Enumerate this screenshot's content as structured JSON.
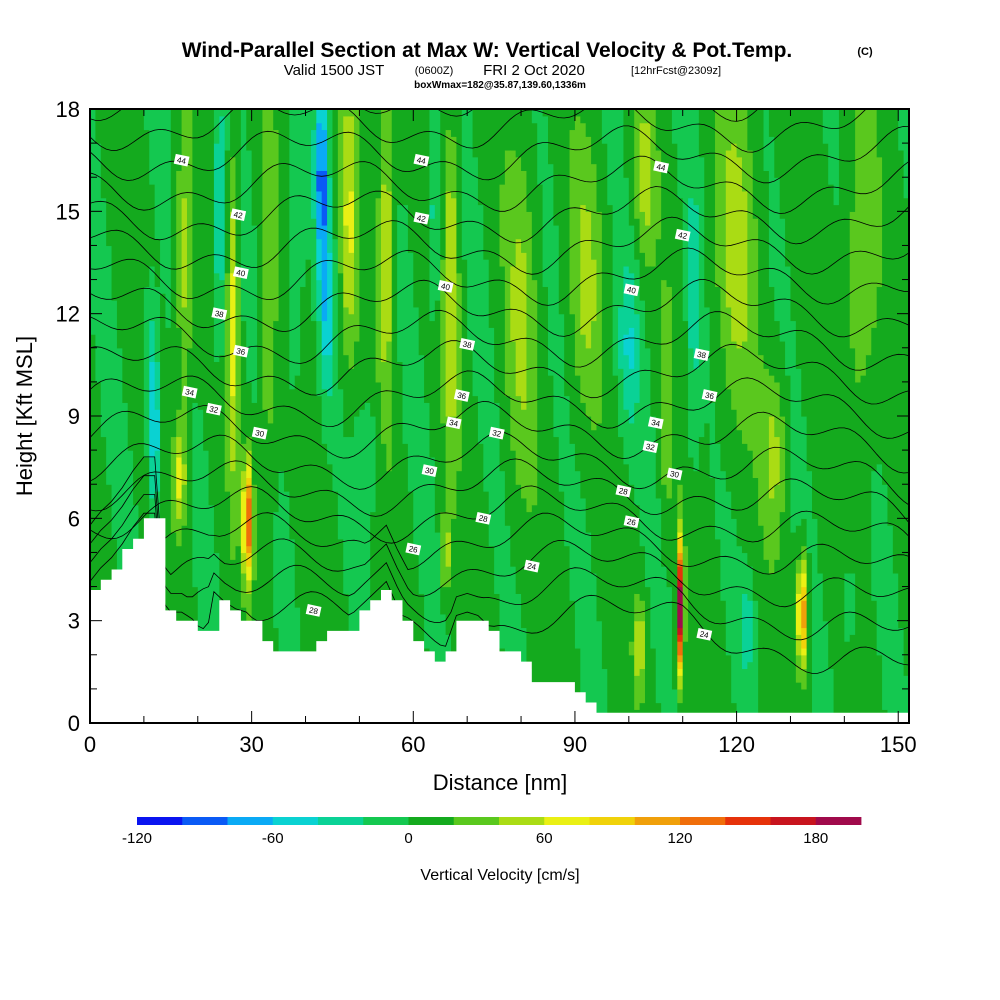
{
  "chart_data": {
    "type": "heatmap",
    "title": "Wind-Parallel Section at Max W: Vertical Velocity & Pot.Temp.",
    "title_mark": "(C)",
    "subtitle_pre": "Valid 1500 JST",
    "subtitle_z": "(0600Z)",
    "subtitle_mid": "FRI 2 Oct 2020",
    "subtitle_fcst": "[12hrFcst@2309z]",
    "info_line": "boxWmax=182@35.87,139.60,1336m",
    "xlabel": "Distance [nm]",
    "ylabel": "Height [Kft MSL]",
    "xlim": [
      0,
      152
    ],
    "ylim": [
      0,
      18
    ],
    "x_ticks": [
      0,
      30,
      60,
      90,
      120,
      150
    ],
    "y_ticks": [
      0,
      3,
      6,
      9,
      12,
      15,
      18
    ],
    "colorbar": {
      "label": "Vertical Velocity [cm/s]",
      "ticks": [
        -120,
        -60,
        0,
        60,
        120,
        180
      ],
      "bins": [
        -120,
        -100,
        -80,
        -60,
        -40,
        -20,
        0,
        20,
        40,
        60,
        80,
        100,
        120,
        140,
        160,
        180,
        200
      ],
      "colors": [
        "#0a14f0",
        "#0a5af5",
        "#0aaaf5",
        "#0ad2d2",
        "#0ad296",
        "#14c850",
        "#14aa1e",
        "#5ac81e",
        "#aadc14",
        "#eaf014",
        "#f0d20a",
        "#f0a00a",
        "#f06e0a",
        "#e6320a",
        "#c8141e",
        "#a00a4b",
        "#5a0a96"
      ]
    },
    "background_w": 5,
    "w_features": [
      {
        "x": 12,
        "y": 8.5,
        "sx": 1.1,
        "sy": 2.5,
        "w": -70
      },
      {
        "x": 11,
        "y": 11,
        "sx": 1,
        "sy": 2,
        "w": -35
      },
      {
        "x": 16.5,
        "y": 7.2,
        "sx": 1.2,
        "sy": 1.4,
        "w": 60
      },
      {
        "x": 17.5,
        "y": 13,
        "sx": 1.4,
        "sy": 5,
        "w": 45
      },
      {
        "x": 24,
        "y": 14.5,
        "sx": 1.2,
        "sy": 4,
        "w": -45
      },
      {
        "x": 26.5,
        "y": 12,
        "sx": 1.0,
        "sy": 5,
        "w": 60
      },
      {
        "x": 29.3,
        "y": 6.0,
        "sx": 0.9,
        "sy": 1.7,
        "w": 135
      },
      {
        "x": 33,
        "y": 12,
        "sx": 1.5,
        "sy": 6,
        "w": 35
      },
      {
        "x": 38,
        "y": 14,
        "sx": 1.4,
        "sy": 5,
        "w": -30
      },
      {
        "x": 43,
        "y": 16,
        "sx": 1.2,
        "sy": 3,
        "w": -90
      },
      {
        "x": 44,
        "y": 12,
        "sx": 1.1,
        "sy": 2.5,
        "w": -55
      },
      {
        "x": 48,
        "y": 14.5,
        "sx": 1.5,
        "sy": 4,
        "w": 55
      },
      {
        "x": 55,
        "y": 14,
        "sx": 1.5,
        "sy": 5,
        "w": 55
      },
      {
        "x": 52,
        "y": 8,
        "sx": 2.5,
        "sy": 2,
        "w": -20
      },
      {
        "x": 64,
        "y": 15,
        "sx": 1.4,
        "sy": 3,
        "w": -40
      },
      {
        "x": 67,
        "y": 13,
        "sx": 1.4,
        "sy": 5,
        "w": 55
      },
      {
        "x": 66,
        "y": 5,
        "sx": 0.8,
        "sy": 1.2,
        "w": 55
      },
      {
        "x": 80,
        "y": 12,
        "sx": 3,
        "sy": 5,
        "w": 35
      },
      {
        "x": 92,
        "y": 13,
        "sx": 3,
        "sy": 4,
        "w": 35
      },
      {
        "x": 100,
        "y": 11,
        "sx": 2,
        "sy": 2.5,
        "w": -40
      },
      {
        "x": 103,
        "y": 16,
        "sx": 2,
        "sy": 2.5,
        "w": 40
      },
      {
        "x": 102,
        "y": 2.3,
        "sx": 1.0,
        "sy": 1.3,
        "w": 55
      },
      {
        "x": 109.5,
        "y": 3.4,
        "sx": 0.65,
        "sy": 1.9,
        "w": 190
      },
      {
        "x": 107,
        "y": 9,
        "sx": 1.0,
        "sy": 3,
        "w": 35
      },
      {
        "x": 112,
        "y": 12,
        "sx": 1.2,
        "sy": 5,
        "w": -30
      },
      {
        "x": 120,
        "y": 14,
        "sx": 4,
        "sy": 5,
        "w": 40
      },
      {
        "x": 122,
        "y": 2.8,
        "sx": 1.2,
        "sy": 1.3,
        "w": -40
      },
      {
        "x": 127,
        "y": 8,
        "sx": 2.2,
        "sy": 2.5,
        "w": 40
      },
      {
        "x": 132.2,
        "y": 3.2,
        "sx": 0.9,
        "sy": 1.6,
        "w": 125
      },
      {
        "x": 143,
        "y": 13,
        "sx": 3,
        "sy": 5,
        "w": 35
      },
      {
        "x": 141,
        "y": 3.5,
        "sx": 2,
        "sy": 2,
        "w": -20
      }
    ],
    "terrain_kft": [
      [
        0,
        3.9
      ],
      [
        2,
        4.3
      ],
      [
        4,
        4.6
      ],
      [
        6,
        5.0
      ],
      [
        8,
        5.5
      ],
      [
        10,
        5.9
      ],
      [
        12,
        5.9
      ],
      [
        13,
        3.8
      ],
      [
        14,
        3.2
      ],
      [
        15,
        3.0
      ],
      [
        17,
        3.0
      ],
      [
        19,
        2.8
      ],
      [
        21,
        2.4
      ],
      [
        22,
        2.7
      ],
      [
        23,
        3.6
      ],
      [
        25,
        3.3
      ],
      [
        27,
        3.1
      ],
      [
        29,
        3.0
      ],
      [
        31,
        2.7
      ],
      [
        33,
        2.1
      ],
      [
        35,
        1.95
      ],
      [
        37,
        1.95
      ],
      [
        39,
        1.95
      ],
      [
        41,
        2.2
      ],
      [
        43,
        2.6
      ],
      [
        45,
        2.6
      ],
      [
        47,
        2.6
      ],
      [
        49,
        3.0
      ],
      [
        51,
        3.3
      ],
      [
        53,
        3.6
      ],
      [
        55,
        3.9
      ],
      [
        57,
        3.2
      ],
      [
        59,
        2.6
      ],
      [
        61,
        2.2
      ],
      [
        63,
        1.8
      ],
      [
        65,
        1.6
      ],
      [
        66,
        2.0
      ],
      [
        68,
        2.9
      ],
      [
        70,
        3.0
      ],
      [
        72,
        2.9
      ],
      [
        74,
        2.6
      ],
      [
        76,
        2.2
      ],
      [
        78,
        2.0
      ],
      [
        80,
        1.8
      ],
      [
        82,
        1.3
      ],
      [
        84,
        1.2
      ],
      [
        86,
        1.2
      ],
      [
        88,
        1.2
      ],
      [
        90,
        0.95
      ],
      [
        92,
        0.45
      ],
      [
        94,
        0.35
      ],
      [
        100,
        0.35
      ],
      [
        110,
        0.35
      ],
      [
        120,
        0.35
      ],
      [
        130,
        0.35
      ],
      [
        140,
        0.35
      ],
      [
        152,
        0.35
      ]
    ],
    "theta_contours": {
      "levels": [
        24,
        25,
        26,
        27,
        28,
        29,
        30,
        31,
        32,
        33,
        34,
        35,
        36,
        37,
        38,
        39,
        40,
        41,
        42,
        43,
        44,
        45
      ],
      "labeled": [
        {
          "text": "44",
          "x": 17,
          "y": 16.5
        },
        {
          "text": "42",
          "x": 27.5,
          "y": 14.9
        },
        {
          "text": "40",
          "x": 28,
          "y": 13.2
        },
        {
          "text": "38",
          "x": 24,
          "y": 12.0
        },
        {
          "text": "36",
          "x": 28,
          "y": 10.9
        },
        {
          "text": "34",
          "x": 18.5,
          "y": 9.7
        },
        {
          "text": "32",
          "x": 23,
          "y": 9.2
        },
        {
          "text": "30",
          "x": 31.5,
          "y": 8.5
        },
        {
          "text": "44",
          "x": 61.5,
          "y": 16.5
        },
        {
          "text": "42",
          "x": 61.5,
          "y": 14.8
        },
        {
          "text": "40",
          "x": 66,
          "y": 12.8
        },
        {
          "text": "38",
          "x": 70,
          "y": 11.1
        },
        {
          "text": "36",
          "x": 69,
          "y": 9.6
        },
        {
          "text": "34",
          "x": 67.5,
          "y": 8.8
        },
        {
          "text": "32",
          "x": 75.5,
          "y": 8.5
        },
        {
          "text": "30",
          "x": 63,
          "y": 7.4
        },
        {
          "text": "28",
          "x": 73,
          "y": 6.0
        },
        {
          "text": "26",
          "x": 60,
          "y": 5.1
        },
        {
          "text": "24",
          "x": 82,
          "y": 4.6
        },
        {
          "text": "28",
          "x": 41.5,
          "y": 3.3
        },
        {
          "text": "44",
          "x": 106,
          "y": 16.3
        },
        {
          "text": "42",
          "x": 110,
          "y": 14.3
        },
        {
          "text": "40",
          "x": 100.5,
          "y": 12.7
        },
        {
          "text": "38",
          "x": 113.5,
          "y": 10.8
        },
        {
          "text": "36",
          "x": 115,
          "y": 9.6
        },
        {
          "text": "34",
          "x": 105,
          "y": 8.8
        },
        {
          "text": "32",
          "x": 104,
          "y": 8.1
        },
        {
          "text": "30",
          "x": 108.5,
          "y": 7.3
        },
        {
          "text": "28",
          "x": 99,
          "y": 6.8
        },
        {
          "text": "26",
          "x": 100.5,
          "y": 5.9
        },
        {
          "text": "24",
          "x": 114,
          "y": 2.6
        }
      ]
    }
  }
}
